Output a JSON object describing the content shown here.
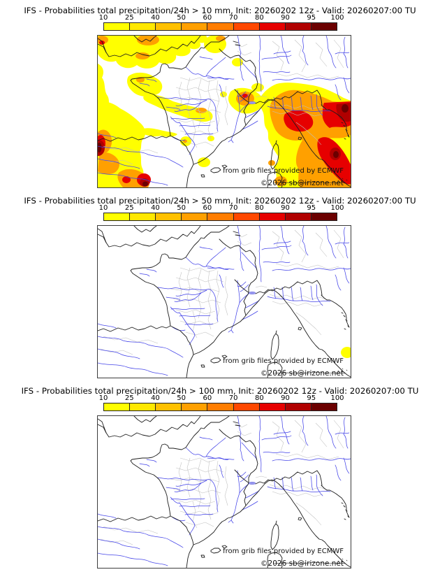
{
  "page": {
    "background": "#ffffff"
  },
  "colorbar": {
    "tick_labels": [
      "10",
      "25",
      "40",
      "50",
      "60",
      "70",
      "80",
      "90",
      "95",
      "100"
    ],
    "segment_colors": [
      "#ffff00",
      "#ffe800",
      "#ffc100",
      "#ffa000",
      "#ff7d00",
      "#ff4800",
      "#e60000",
      "#b00000",
      "#6b0000"
    ]
  },
  "panels": [
    {
      "title": "IFS - Probabilities total precipitation/24h > 10 mm, Init: 20260202 12z - Valid: 20260207:00 TU",
      "threshold": "> 10 mm"
    },
    {
      "title": "IFS - Probabilities total precipitation/24h > 50 mm, Init: 20260202 12z - Valid: 20260207:00 TU",
      "threshold": "> 50 mm"
    },
    {
      "title": "IFS - Probabilities total precipitation/24h > 100 mm, Init: 20260202 12z - Valid: 20260207:00 TU",
      "threshold": "> 100 mm"
    }
  ],
  "map": {
    "attribution_line1": "from grib files provided by ECMWF",
    "attribution_line2": "©2026 sb@irizone.net",
    "colors": {
      "coast": "#1c1c1c",
      "admin": "#c0c0c0",
      "river": "#4343e8",
      "frame": "#3c3c3c"
    }
  }
}
